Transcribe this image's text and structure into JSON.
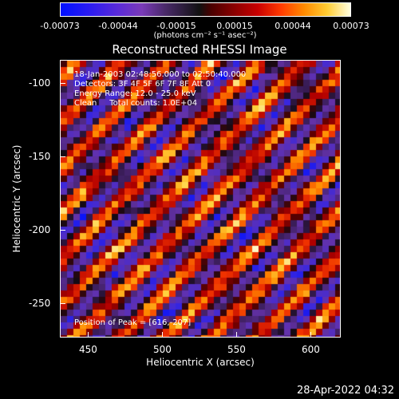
{
  "colorbar": {
    "ticks": [
      "-0.00073",
      "-0.00044",
      "-0.00015",
      "0.00015",
      "0.00044",
      "0.00073"
    ],
    "unit_label": "(photons cm⁻² s⁻¹ asec⁻²)"
  },
  "title": "Reconstructed RHESSI Image",
  "overlay": {
    "line1": "18-Jan-2003 02:48:56.000 to 02:50:40.000",
    "line2": "Detectors: 3F 4F 5F 6F 7F 8F Att 0",
    "line3": "Energy Range: 12.0 - 25.0 keV",
    "line4": "Clean     Total counts: 1.0E+04",
    "peak": "Position of Peak = [616,-207]"
  },
  "axes": {
    "xlabel": "Heliocentric X (arcsec)",
    "ylabel": "Heliocentric Y (arcsec)",
    "xticks": [
      "450",
      "500",
      "550",
      "600"
    ],
    "yticks": [
      "-100",
      "-150",
      "-200",
      "-250"
    ]
  },
  "timestamp": "28-Apr-2022 04:32"
}
